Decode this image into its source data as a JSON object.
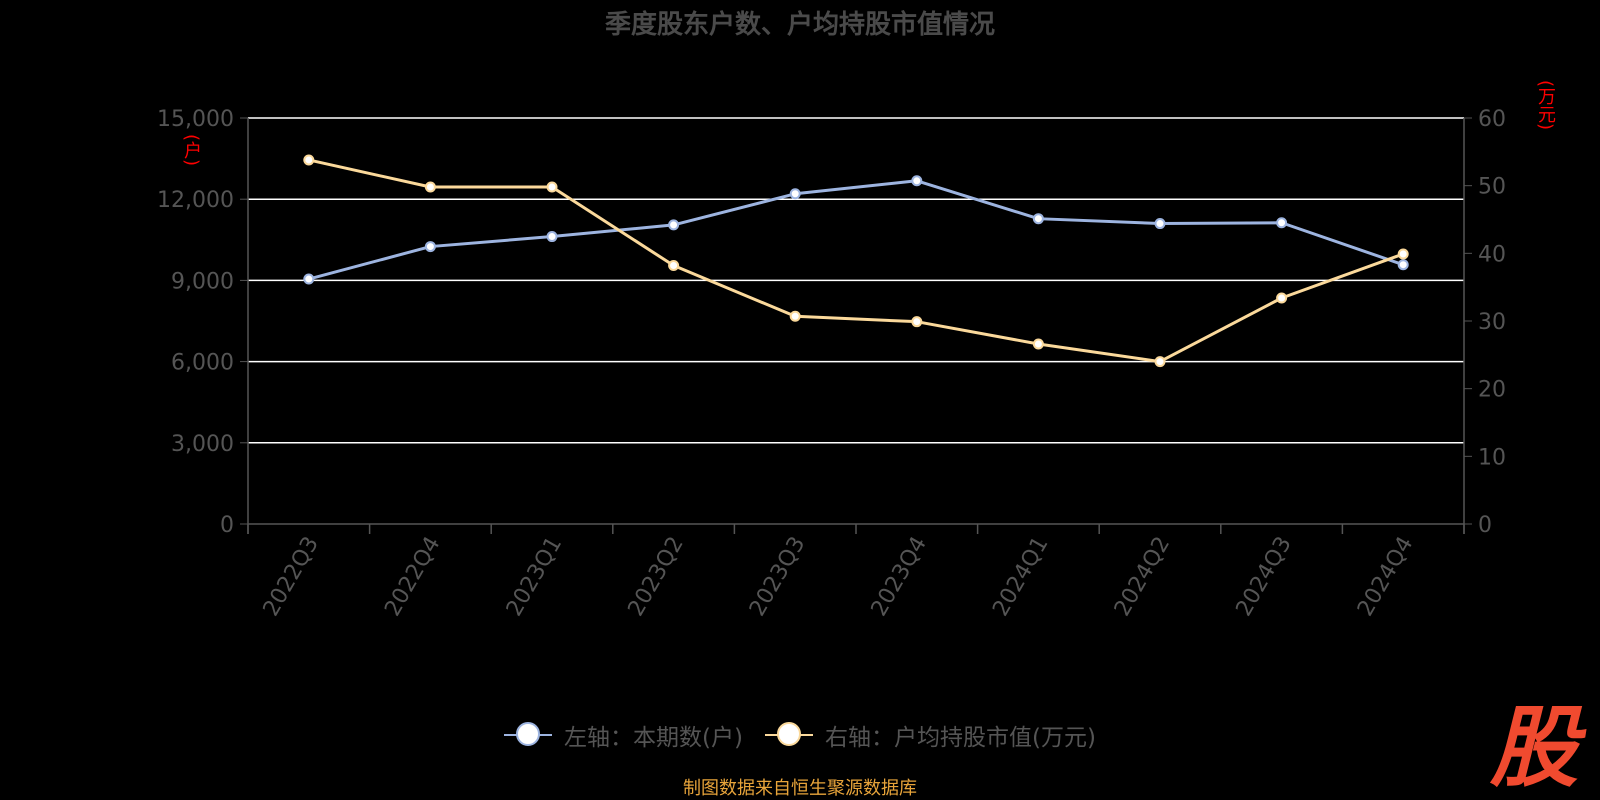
{
  "chart_data": {
    "type": "line",
    "title": "季度股东户数、户均持股市值情况",
    "categories": [
      "2022Q3",
      "2022Q4",
      "2023Q1",
      "2023Q2",
      "2023Q3",
      "2023Q4",
      "2024Q1",
      "2024Q2",
      "2024Q3",
      "2024Q4"
    ],
    "left_axis": {
      "unit": "(户)",
      "ylim": [
        0,
        15000
      ],
      "ticks": [
        "0",
        "3,000",
        "6,000",
        "9,000",
        "12,000",
        "15,000"
      ]
    },
    "right_axis": {
      "unit": "(万元)",
      "ylim": [
        0,
        60
      ],
      "ticks": [
        "0",
        "10",
        "20",
        "30",
        "40",
        "50",
        "60"
      ]
    },
    "series": [
      {
        "name": "左轴：本期数(户)",
        "axis": "left",
        "color": "#9db4e0",
        "values": [
          9050,
          10250,
          10620,
          11050,
          12200,
          12680,
          11280,
          11100,
          11130,
          9580
        ]
      },
      {
        "name": "右轴：户均持股市值(万元)",
        "axis": "right",
        "color": "#fbd99b",
        "values": [
          53.8,
          49.8,
          49.8,
          38.2,
          30.7,
          29.9,
          26.6,
          24.0,
          33.4,
          39.9
        ]
      }
    ],
    "grid": true,
    "legend_position": "bottom"
  },
  "source_text": "制图数据来自恒生聚源数据库",
  "logo_text": "股"
}
